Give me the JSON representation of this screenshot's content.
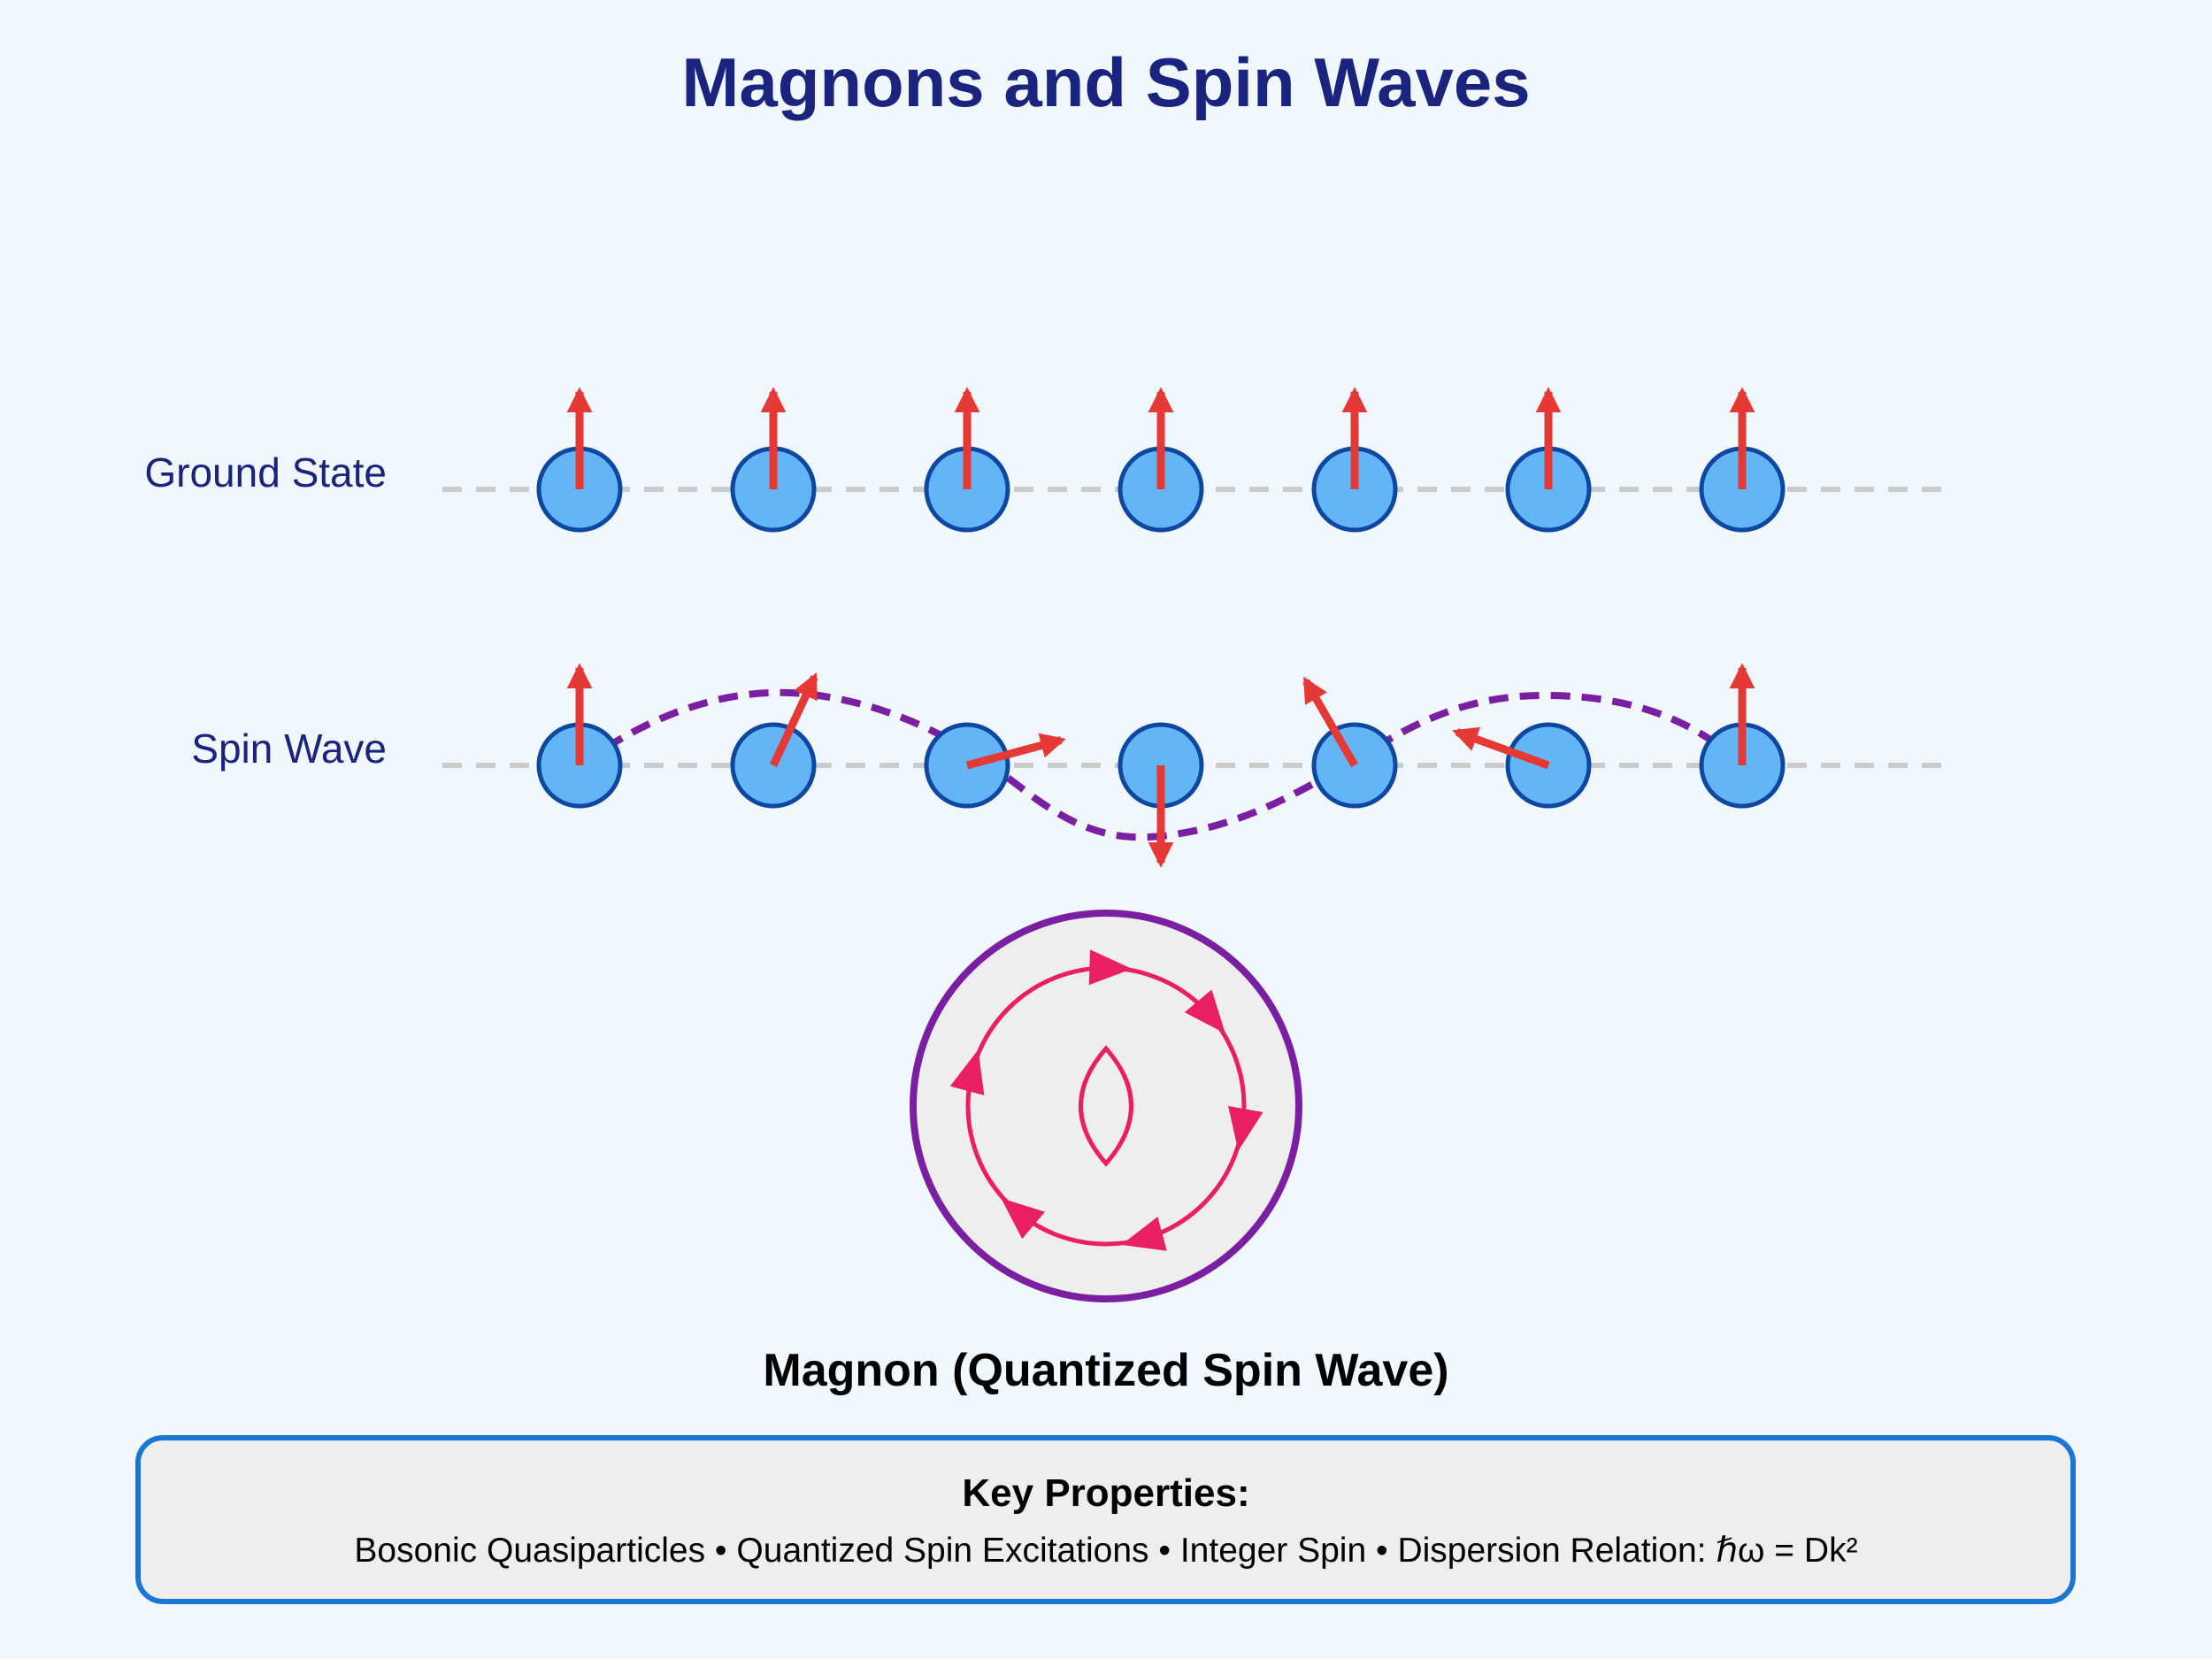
{
  "title": "Magnons and Spin Waves",
  "rows": {
    "ground_label": "Ground State",
    "wave_label": "Spin Wave"
  },
  "spin_wave_angles_deg": [
    0,
    25,
    75,
    180,
    -30,
    -70,
    0
  ],
  "magnon": {
    "caption": "Magnon (Quantized Spin Wave)"
  },
  "properties": {
    "heading": "Key Properties:",
    "line": "Bosonic Quasiparticles • Quantized Spin Excitations • Integer Spin • Dispersion Relation: ℏω = Dk²"
  },
  "colors": {
    "background": "#f0f8fe",
    "title": "#1a237e",
    "atom_fill": "#64b5f6",
    "atom_stroke": "#0d47a1",
    "spin_arrow": "#e53935",
    "wave_curve": "#7b1fa2",
    "magnon_arrows": "#e91e63",
    "box_border": "#1976d2",
    "box_fill": "#eeeeee"
  }
}
